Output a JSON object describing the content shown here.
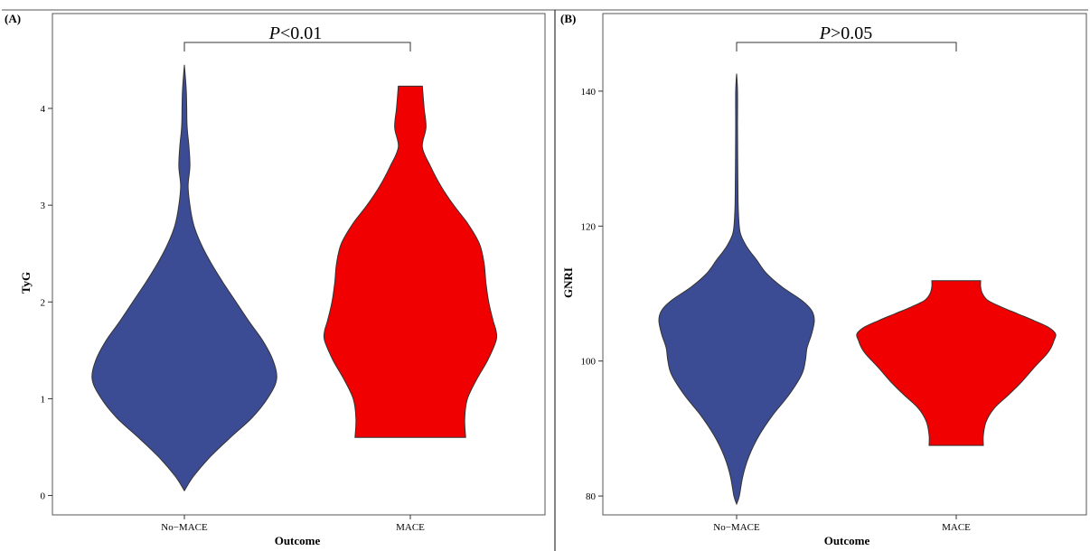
{
  "colors": {
    "no_mace": "#3B4C94",
    "mace": "#F00000",
    "outline": "#333333",
    "frame": "#555555"
  },
  "chart_data": [
    {
      "type": "violin",
      "panel_label": "(A)",
      "xlabel": "Outcome",
      "ylabel": "TyG",
      "categories": [
        "No−MACE",
        "MACE"
      ],
      "ylim": [
        -0.2,
        4.98
      ],
      "yticks": [
        0,
        1,
        2,
        3,
        4
      ],
      "significance": {
        "prefix": "P",
        "text": "<0.01"
      },
      "series": [
        {
          "name": "No−MACE",
          "y": [
            0.05,
            0.2,
            0.4,
            0.6,
            0.8,
            1.0,
            1.2,
            1.4,
            1.6,
            1.8,
            2.0,
            2.2,
            2.4,
            2.6,
            2.8,
            3.0,
            3.2,
            3.4,
            3.6,
            3.8,
            4.0,
            4.2,
            4.45
          ],
          "density": [
            0.0,
            0.1,
            0.28,
            0.5,
            0.73,
            0.9,
            1.0,
            0.96,
            0.85,
            0.7,
            0.56,
            0.42,
            0.29,
            0.18,
            0.1,
            0.06,
            0.04,
            0.06,
            0.05,
            0.03,
            0.025,
            0.02,
            0.0
          ]
        },
        {
          "name": "MACE",
          "y": [
            0.6,
            0.8,
            1.0,
            1.2,
            1.4,
            1.6,
            1.7,
            1.8,
            2.0,
            2.2,
            2.4,
            2.6,
            2.8,
            3.0,
            3.2,
            3.4,
            3.6,
            3.8,
            4.0,
            4.23
          ],
          "density": [
            0.6,
            0.59,
            0.62,
            0.72,
            0.84,
            0.93,
            0.93,
            0.9,
            0.85,
            0.82,
            0.8,
            0.75,
            0.63,
            0.47,
            0.33,
            0.22,
            0.13,
            0.17,
            0.15,
            0.13
          ]
        }
      ]
    },
    {
      "type": "violin",
      "panel_label": "(B)",
      "xlabel": "Outcome",
      "ylabel": "GNRI",
      "categories": [
        "No−MACE",
        "MACE"
      ],
      "ylim": [
        77.2,
        151.5
      ],
      "yticks": [
        80,
        100,
        120,
        140
      ],
      "significance": {
        "prefix": "P",
        "text": ">0.05"
      },
      "series": [
        {
          "name": "No−MACE",
          "y": [
            78.8,
            80,
            83,
            86,
            89,
            92,
            95,
            98,
            100,
            102,
            104,
            106,
            107.5,
            109,
            111,
            113,
            115,
            117,
            119,
            122,
            125,
            130,
            135,
            140,
            142.6
          ],
          "density": [
            0.0,
            0.03,
            0.07,
            0.14,
            0.25,
            0.4,
            0.58,
            0.72,
            0.76,
            0.78,
            0.83,
            0.86,
            0.83,
            0.72,
            0.5,
            0.33,
            0.22,
            0.11,
            0.04,
            0.02,
            0.015,
            0.012,
            0.01,
            0.01,
            0.0
          ]
        },
        {
          "name": "MACE",
          "y": [
            87.5,
            89,
            91,
            93,
            95,
            97,
            99,
            101,
            102,
            103,
            104,
            105,
            106,
            107,
            108,
            109,
            110,
            111,
            111.9
          ],
          "density": [
            0.3,
            0.3,
            0.33,
            0.42,
            0.58,
            0.73,
            0.86,
            1.0,
            1.05,
            1.08,
            1.1,
            1.02,
            0.86,
            0.68,
            0.5,
            0.35,
            0.29,
            0.27,
            0.27
          ]
        }
      ]
    }
  ]
}
